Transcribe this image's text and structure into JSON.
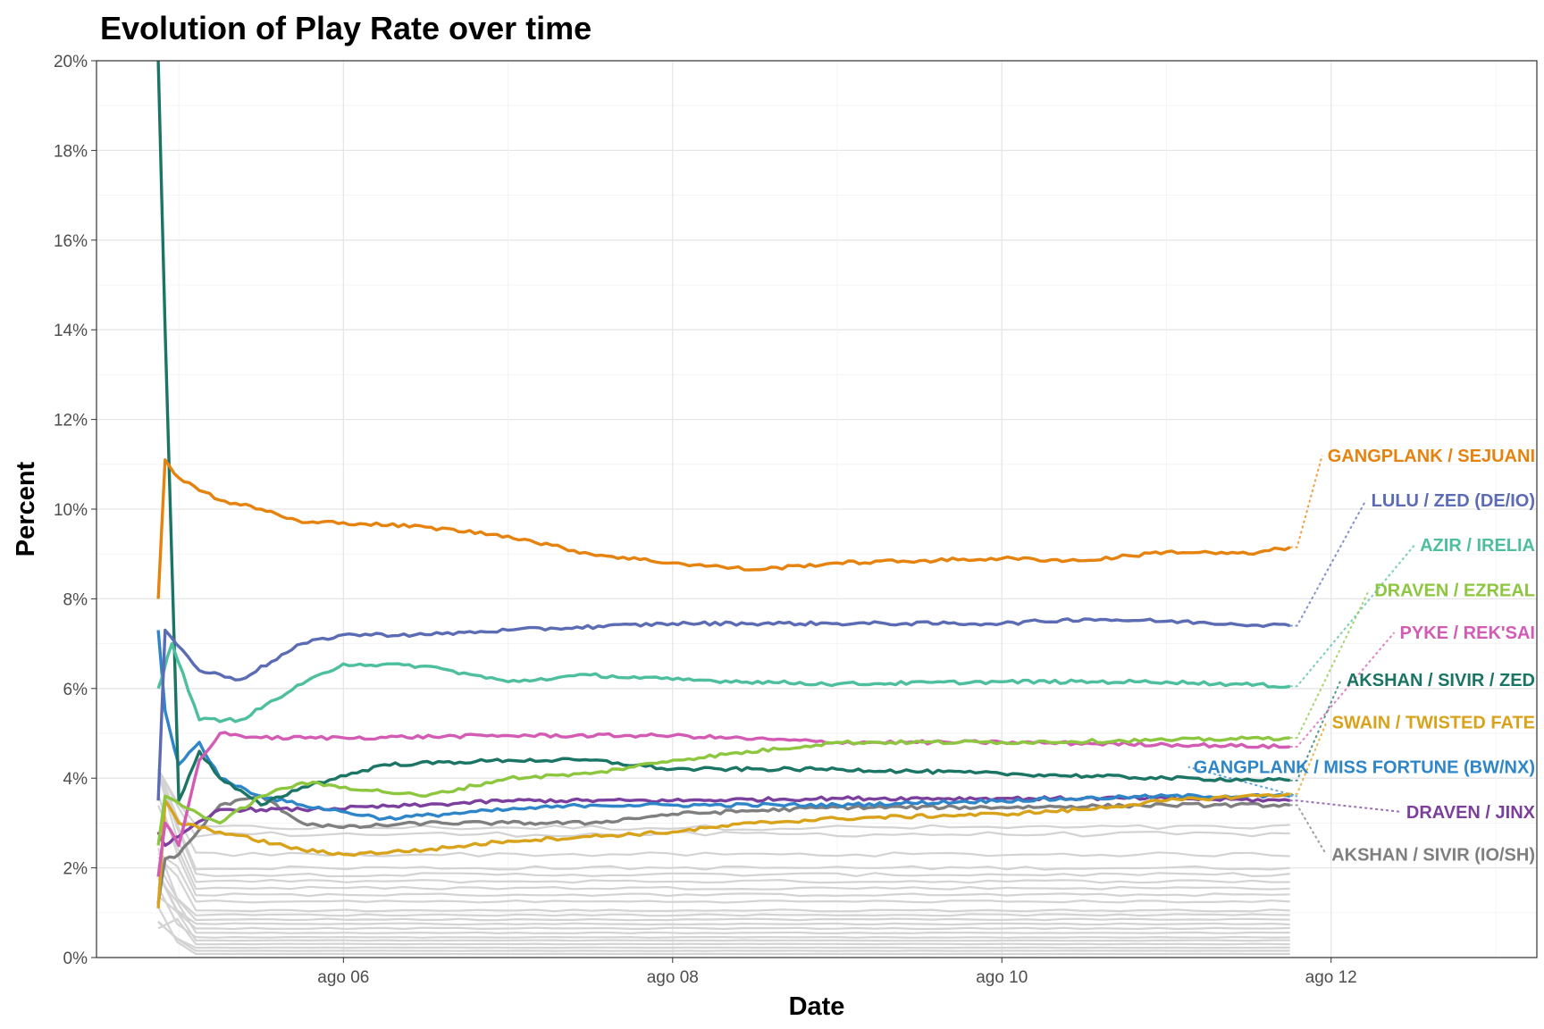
{
  "chart_data": {
    "type": "line",
    "title": "Evolution of Play Rate over time",
    "xlabel": "Date",
    "ylabel": "Percent",
    "x_range": [
      "2022-08-04T12:00",
      "2022-08-13T06:00"
    ],
    "ylim": [
      0,
      20
    ],
    "x_ticks": [
      {
        "date": "2022-08-06",
        "label": "ago 06"
      },
      {
        "date": "2022-08-08",
        "label": "ago 08"
      },
      {
        "date": "2022-08-10",
        "label": "ago 10"
      },
      {
        "date": "2022-08-12",
        "label": "ago 12"
      }
    ],
    "y_ticks": [
      {
        "value": 0,
        "label": "0%"
      },
      {
        "value": 2,
        "label": "2%"
      },
      {
        "value": 4,
        "label": "4%"
      },
      {
        "value": 6,
        "label": "6%"
      },
      {
        "value": 8,
        "label": "8%"
      },
      {
        "value": 10,
        "label": "10%"
      },
      {
        "value": 12,
        "label": "12%"
      },
      {
        "value": 14,
        "label": "14%"
      },
      {
        "value": 16,
        "label": "16%"
      },
      {
        "value": 18,
        "label": "18%"
      },
      {
        "value": 20,
        "label": "20%"
      }
    ],
    "grid": true,
    "background_series_color": "#d3d3d3",
    "background_series_end_values": [
      2.9,
      2.75,
      2.3,
      2.0,
      1.85,
      1.7,
      1.55,
      1.4,
      1.25,
      1.05,
      0.95,
      0.85,
      0.75,
      0.65,
      0.55,
      0.45,
      0.38,
      0.3,
      0.22,
      0.15,
      0.08
    ],
    "series": [
      {
        "name": "GANGPLANK / SEJUANI",
        "color": "#E6820E",
        "x": [
          "2022-08-04T21:00",
          "2022-08-04T22:00",
          "2022-08-05T00:00",
          "2022-08-05T06:00",
          "2022-08-05T12:00",
          "2022-08-05T18:00",
          "2022-08-06T00:00",
          "2022-08-06T12:00",
          "2022-08-07T00:00",
          "2022-08-07T12:00",
          "2022-08-08T00:00",
          "2022-08-08T12:00",
          "2022-08-09T00:00",
          "2022-08-09T12:00",
          "2022-08-10T00:00",
          "2022-08-10T12:00",
          "2022-08-11T00:00",
          "2022-08-11T12:00",
          "2022-08-11T18:00"
        ],
        "values": [
          8.0,
          11.1,
          10.7,
          10.2,
          10.0,
          9.7,
          9.7,
          9.6,
          9.4,
          9.0,
          8.8,
          8.65,
          8.8,
          8.85,
          8.9,
          8.85,
          9.05,
          9.0,
          9.15
        ]
      },
      {
        "name": "LULU / ZED (DE/IO)",
        "color": "#5B6CB5",
        "x": [
          "2022-08-04T21:00",
          "2022-08-04T22:00",
          "2022-08-05T03:00",
          "2022-08-05T09:00",
          "2022-08-05T18:00",
          "2022-08-06T00:00",
          "2022-08-06T12:00",
          "2022-08-07T00:00",
          "2022-08-08T00:00",
          "2022-08-09T00:00",
          "2022-08-10T00:00",
          "2022-08-10T12:00",
          "2022-08-11T00:00",
          "2022-08-11T18:00"
        ],
        "values": [
          3.5,
          7.3,
          6.4,
          6.2,
          7.0,
          7.2,
          7.2,
          7.3,
          7.45,
          7.45,
          7.45,
          7.55,
          7.5,
          7.4
        ]
      },
      {
        "name": "AZIR / IRELIA",
        "color": "#4DBF9F",
        "x": [
          "2022-08-04T21:00",
          "2022-08-04T23:00",
          "2022-08-05T03:00",
          "2022-08-05T09:00",
          "2022-08-05T18:00",
          "2022-08-06T00:00",
          "2022-08-06T12:00",
          "2022-08-07T00:00",
          "2022-08-07T12:00",
          "2022-08-08T00:00",
          "2022-08-09T00:00",
          "2022-08-10T00:00",
          "2022-08-11T00:00",
          "2022-08-11T18:00"
        ],
        "values": [
          6.0,
          7.0,
          5.3,
          5.3,
          6.1,
          6.55,
          6.5,
          6.15,
          6.3,
          6.2,
          6.1,
          6.15,
          6.15,
          6.05
        ]
      },
      {
        "name": "DRAVEN / EZREAL",
        "color": "#8DC63F",
        "x": [
          "2022-08-04T21:00",
          "2022-08-04T22:00",
          "2022-08-05T03:00",
          "2022-08-05T06:00",
          "2022-08-05T12:00",
          "2022-08-05T18:00",
          "2022-08-06T12:00",
          "2022-08-07T00:00",
          "2022-08-07T12:00",
          "2022-08-08T00:00",
          "2022-08-09T00:00",
          "2022-08-10T00:00",
          "2022-08-11T00:00",
          "2022-08-11T18:00"
        ],
        "values": [
          2.5,
          3.6,
          3.2,
          3.0,
          3.6,
          3.9,
          3.6,
          4.0,
          4.1,
          4.4,
          4.8,
          4.8,
          4.85,
          4.9
        ]
      },
      {
        "name": "PYKE / REK'SAI",
        "color": "#D35BB4",
        "x": [
          "2022-08-04T21:00",
          "2022-08-04T22:00",
          "2022-08-05T00:00",
          "2022-08-05T03:00",
          "2022-08-05T06:00",
          "2022-08-05T12:00",
          "2022-08-06T00:00",
          "2022-08-07T00:00",
          "2022-08-08T00:00",
          "2022-08-09T00:00",
          "2022-08-10T00:00",
          "2022-08-11T00:00",
          "2022-08-11T18:00"
        ],
        "values": [
          1.8,
          3.0,
          2.5,
          4.4,
          5.0,
          4.9,
          4.9,
          4.95,
          4.95,
          4.8,
          4.8,
          4.75,
          4.7
        ]
      },
      {
        "name": "AKSHAN / SIVIR / ZED",
        "color": "#1B7564",
        "x": [
          "2022-08-04T21:00",
          "2022-08-04T22:00",
          "2022-08-05T00:00",
          "2022-08-05T03:00",
          "2022-08-05T06:00",
          "2022-08-05T12:00",
          "2022-08-05T18:00",
          "2022-08-06T06:00",
          "2022-08-07T00:00",
          "2022-08-07T12:00",
          "2022-08-08T00:00",
          "2022-08-09T00:00",
          "2022-08-10T00:00",
          "2022-08-11T00:00",
          "2022-08-11T18:00"
        ],
        "values": [
          20.0,
          14.0,
          3.5,
          4.6,
          4.0,
          3.4,
          3.8,
          4.3,
          4.4,
          4.4,
          4.2,
          4.2,
          4.1,
          4.0,
          3.95
        ]
      },
      {
        "name": "SWAIN / TWISTED FATE",
        "color": "#D9A21B",
        "x": [
          "2022-08-04T21:00",
          "2022-08-04T22:00",
          "2022-08-05T00:00",
          "2022-08-05T06:00",
          "2022-08-05T18:00",
          "2022-08-06T00:00",
          "2022-08-06T12:00",
          "2022-08-07T00:00",
          "2022-08-07T12:00",
          "2022-08-08T00:00",
          "2022-08-08T12:00",
          "2022-08-09T00:00",
          "2022-08-10T00:00",
          "2022-08-10T12:00",
          "2022-08-11T00:00",
          "2022-08-11T18:00"
        ],
        "values": [
          1.1,
          3.5,
          3.0,
          2.8,
          2.4,
          2.3,
          2.4,
          2.6,
          2.7,
          2.8,
          3.0,
          3.1,
          3.2,
          3.3,
          3.5,
          3.65
        ]
      },
      {
        "name": "GANGPLANK / MISS FORTUNE (BW/NX)",
        "color": "#2E86C8",
        "x": [
          "2022-08-04T21:00",
          "2022-08-04T22:00",
          "2022-08-05T00:00",
          "2022-08-05T03:00",
          "2022-08-05T06:00",
          "2022-08-05T12:00",
          "2022-08-05T18:00",
          "2022-08-06T06:00",
          "2022-08-07T00:00",
          "2022-08-07T12:00",
          "2022-08-08T00:00",
          "2022-08-09T00:00",
          "2022-08-10T00:00",
          "2022-08-11T00:00",
          "2022-08-11T18:00"
        ],
        "values": [
          7.3,
          5.5,
          4.3,
          4.8,
          4.0,
          3.6,
          3.4,
          3.1,
          3.3,
          3.4,
          3.4,
          3.4,
          3.5,
          3.6,
          3.6
        ]
      },
      {
        "name": "DRAVEN / JINX",
        "color": "#7B3F9E",
        "x": [
          "2022-08-04T21:00",
          "2022-08-04T22:00",
          "2022-08-05T00:00",
          "2022-08-05T06:00",
          "2022-08-05T12:00",
          "2022-08-05T18:00",
          "2022-08-06T12:00",
          "2022-08-07T00:00",
          "2022-08-08T00:00",
          "2022-08-09T00:00",
          "2022-08-10T00:00",
          "2022-08-11T00:00",
          "2022-08-11T18:00"
        ],
        "values": [
          2.8,
          2.5,
          2.7,
          3.3,
          3.3,
          3.3,
          3.4,
          3.5,
          3.5,
          3.55,
          3.55,
          3.55,
          3.5
        ]
      },
      {
        "name": "AKSHAN / SIVIR (IO/SH)",
        "color": "#7F7F7F",
        "x": [
          "2022-08-04T21:00",
          "2022-08-04T22:00",
          "2022-08-05T00:00",
          "2022-08-05T06:00",
          "2022-08-05T12:00",
          "2022-08-05T18:00",
          "2022-08-06T00:00",
          "2022-08-06T12:00",
          "2022-08-07T00:00",
          "2022-08-07T12:00",
          "2022-08-08T00:00",
          "2022-08-09T00:00",
          "2022-08-10T00:00",
          "2022-08-11T00:00",
          "2022-08-11T18:00"
        ],
        "values": [
          1.2,
          2.2,
          2.3,
          3.4,
          3.6,
          3.0,
          2.9,
          3.0,
          3.0,
          3.0,
          3.2,
          3.35,
          3.35,
          3.4,
          3.4
        ]
      }
    ],
    "end_labels": [
      {
        "series": "GANGPLANK / SEJUANI",
        "text": "GANGPLANK / SEJUANI",
        "label_value": 11.2
      },
      {
        "series": "LULU / ZED (DE/IO)",
        "text": "LULU / ZED (DE/IO)",
        "label_value": 10.2
      },
      {
        "series": "AZIR / IRELIA",
        "text": "AZIR / IRELIA",
        "label_value": 9.2
      },
      {
        "series": "DRAVEN / EZREAL",
        "text": "DRAVEN / EZREAL",
        "label_value": 8.2
      },
      {
        "series": "PYKE / REK'SAI",
        "text": "PYKE / REK'SAI",
        "label_value": 7.25
      },
      {
        "series": "AKSHAN / SIVIR / ZED",
        "text": "AKSHAN / SIVIR / ZED",
        "label_value": 6.2
      },
      {
        "series": "SWAIN / TWISTED FATE",
        "text": "SWAIN / TWISTED FATE",
        "label_value": 5.25
      },
      {
        "series": "GANGPLANK / MISS FORTUNE (BW/NX)",
        "text": "GANGPLANK / MISS FORTUNE (BW/NX)",
        "label_value": 4.25
      },
      {
        "series": "DRAVEN / JINX",
        "text": "DRAVEN / JINX",
        "label_value": 3.25
      },
      {
        "series": "AKSHAN / SIVIR (IO/SH)",
        "text": "AKSHAN / SIVIR (IO/SH)",
        "label_value": 2.3
      }
    ]
  }
}
